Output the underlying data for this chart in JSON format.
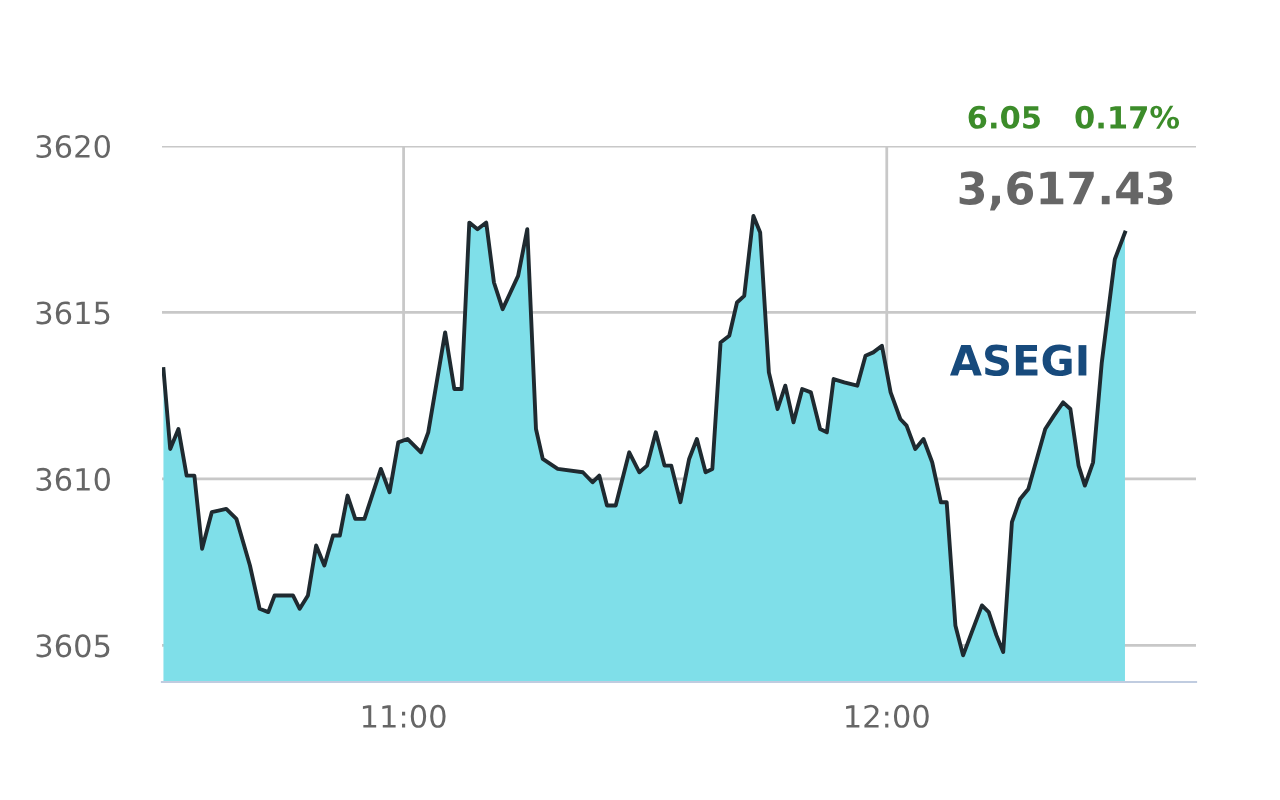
{
  "chart_data": {
    "type": "area",
    "x": [
      10.503,
      10.517,
      10.534,
      10.551,
      10.567,
      10.583,
      10.603,
      10.633,
      10.654,
      10.682,
      10.702,
      10.72,
      10.733,
      10.771,
      10.785,
      10.802,
      10.819,
      10.836,
      10.854,
      10.868,
      10.884,
      10.9,
      10.919,
      10.953,
      10.971,
      10.989,
      11.008,
      11.036,
      11.051,
      11.086,
      11.105,
      11.12,
      11.136,
      11.153,
      11.171,
      11.187,
      11.205,
      11.237,
      11.256,
      11.274,
      11.288,
      11.319,
      11.371,
      11.391,
      11.405,
      11.421,
      11.439,
      11.467,
      11.488,
      11.504,
      11.522,
      11.54,
      11.554,
      11.573,
      11.591,
      11.607,
      11.625,
      11.639,
      11.656,
      11.674,
      11.69,
      11.705,
      11.724,
      11.738,
      11.756,
      11.774,
      11.79,
      11.807,
      11.825,
      11.843,
      11.862,
      11.876,
      11.89,
      11.912,
      11.939,
      11.956,
      11.972,
      11.99,
      12.008,
      12.028,
      12.041,
      12.059,
      12.076,
      12.094,
      12.112,
      12.124,
      12.142,
      12.158,
      12.176,
      12.197,
      12.211,
      12.227,
      12.241,
      12.259,
      12.276,
      12.293,
      12.328,
      12.346,
      12.365,
      12.38,
      12.397,
      12.41,
      12.427,
      12.445,
      12.472,
      12.493
    ],
    "series": [
      {
        "color": "#7fdfe9",
        "values": [
          3613.3,
          3610.9,
          3611.5,
          3610.1,
          3610.1,
          3607.9,
          3609.0,
          3609.1,
          3608.8,
          3607.4,
          3606.1,
          3606.0,
          3606.5,
          3606.5,
          3606.1,
          3606.5,
          3608.0,
          3607.4,
          3608.3,
          3608.3,
          3609.5,
          3608.8,
          3608.8,
          3610.3,
          3609.6,
          3611.1,
          3611.2,
          3610.8,
          3611.4,
          3614.4,
          3612.7,
          3612.7,
          3617.7,
          3617.5,
          3617.7,
          3615.9,
          3615.1,
          3616.1,
          3617.5,
          3611.5,
          3610.6,
          3610.3,
          3610.2,
          3609.9,
          3610.1,
          3609.2,
          3609.2,
          3610.8,
          3610.2,
          3610.4,
          3611.4,
          3610.4,
          3610.4,
          3609.3,
          3610.6,
          3611.2,
          3610.2,
          3610.3,
          3614.1,
          3614.3,
          3615.3,
          3615.5,
          3617.9,
          3617.4,
          3613.2,
          3612.1,
          3612.8,
          3611.7,
          3612.7,
          3612.6,
          3611.5,
          3611.4,
          3613.0,
          3612.9,
          3612.8,
          3613.7,
          3613.8,
          3614.0,
          3612.6,
          3611.8,
          3611.6,
          3610.9,
          3611.2,
          3610.5,
          3609.3,
          3609.3,
          3605.6,
          3604.7,
          3605.4,
          3606.2,
          3606.0,
          3605.3,
          3604.8,
          3608.7,
          3609.4,
          3609.7,
          3611.5,
          3611.9,
          3612.3,
          3612.1,
          3610.4,
          3609.8,
          3610.5,
          3613.5,
          3616.6,
          3617.4
        ]
      }
    ],
    "xlim": [
      10.5,
      12.64
    ],
    "xticks": [
      {
        "value": 11,
        "label": "11:00"
      },
      {
        "value": 12,
        "label": "12:00"
      }
    ],
    "ylim": [
      3603.9,
      3620
    ],
    "yticks": [
      3605,
      3610,
      3615,
      3620
    ],
    "grid": true,
    "legend": false,
    "marker": "none",
    "line_style": "solid",
    "annotations": [
      "6.05   0.17%",
      "3,617.43",
      "ASEGI"
    ]
  }
}
